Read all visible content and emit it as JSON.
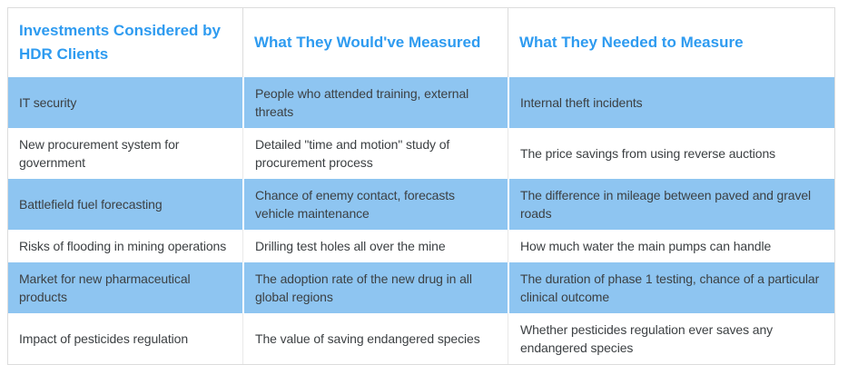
{
  "colors": {
    "header_text": "#2e9bf0",
    "row_highlight": "#8ec5f1",
    "body_text": "#3c4043",
    "border": "#dcdcdc",
    "divider_on_white": "#e9e9e9",
    "divider_on_blue": "#ffffff",
    "background": "#ffffff"
  },
  "table": {
    "columns": [
      "Investments Considered by HDR Clients",
      "What They Would've Measured",
      "What They Needed to Measure"
    ],
    "rows": [
      [
        "IT security",
        "People who attended training, external threats",
        "Internal theft incidents"
      ],
      [
        "New procurement system for government",
        "Detailed \"time and motion\" study of procurement process",
        "The price savings from using reverse auctions"
      ],
      [
        "Battlefield fuel forecasting",
        "Chance of enemy contact, forecasts vehicle maintenance",
        "The difference in mileage between paved and gravel roads"
      ],
      [
        "Risks of flooding in mining operations",
        "Drilling test holes all over the mine",
        "How much water the main pumps can handle"
      ],
      [
        "Market for new pharmaceutical products",
        "The adoption rate of the new drug in all global regions",
        "The duration of phase 1 testing, chance of a particular clinical outcome"
      ],
      [
        "Impact of pesticides regulation",
        "The value of saving endangered species",
        "Whether pesticides regulation ever saves any endangered species"
      ]
    ]
  }
}
